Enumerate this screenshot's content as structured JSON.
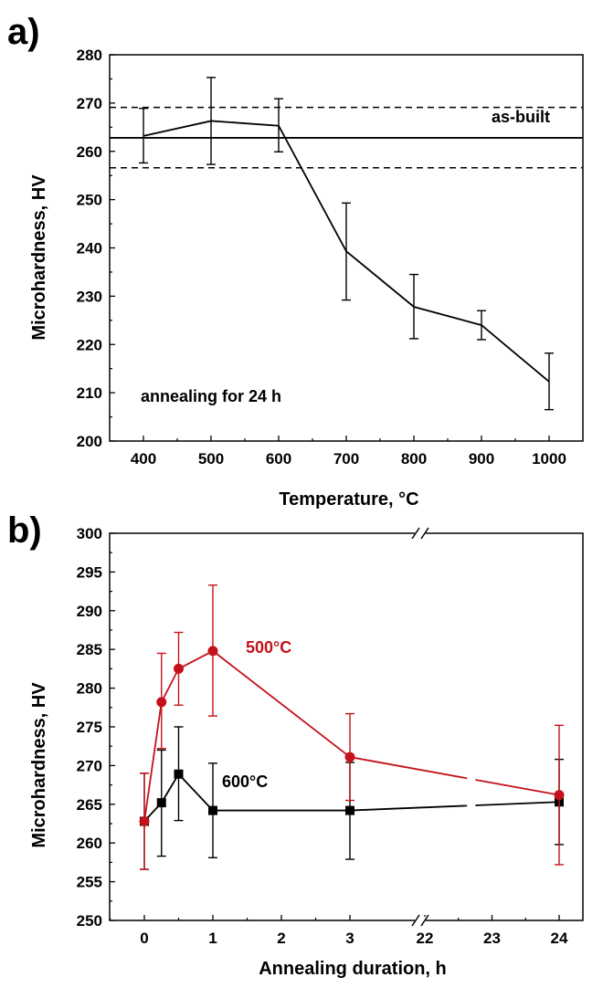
{
  "chart_data": [
    {
      "panel_label": "a)",
      "type": "line",
      "xlabel": "Temperature, °C",
      "ylabel": "Microhardness, HV",
      "xlim": [
        350,
        1050
      ],
      "ylim": [
        200,
        280
      ],
      "x_ticks": [
        400,
        500,
        600,
        700,
        800,
        900,
        1000
      ],
      "y_ticks": [
        200,
        210,
        220,
        230,
        240,
        250,
        260,
        270,
        280
      ],
      "series": [
        {
          "color": "#000000",
          "x": [
            400,
            500,
            600,
            700,
            800,
            900,
            1000
          ],
          "y": [
            263.2,
            266.3,
            265.3,
            239.3,
            227.8,
            224.0,
            212.3
          ],
          "err_low": [
            5.6,
            9.0,
            5.4,
            10.1,
            6.6,
            3.0,
            5.8
          ],
          "err_high": [
            5.7,
            9.0,
            5.6,
            10.0,
            6.7,
            3.0,
            5.9
          ]
        }
      ],
      "reference": {
        "label": "as-built",
        "value": 262.8,
        "lower": 256.6,
        "upper": 269.1
      },
      "annotation": "annealing for 24 h",
      "grid": false
    },
    {
      "panel_label": "b)",
      "type": "line",
      "xlabel": "Annealing duration, h",
      "ylabel": "Microhardness, HV",
      "x_tick_labels": [
        "0",
        "1",
        "2",
        "3",
        "22",
        "23",
        "24"
      ],
      "axis_break": "between 3 and 22",
      "ylim": [
        250,
        300
      ],
      "y_ticks": [
        250,
        255,
        260,
        265,
        270,
        275,
        280,
        285,
        290,
        295,
        300
      ],
      "series": [
        {
          "name": "500°C",
          "color": "#c4121a",
          "marker": "circle",
          "x": [
            0,
            0.25,
            0.5,
            1,
            3,
            24
          ],
          "y": [
            262.8,
            278.2,
            282.5,
            284.8,
            271.1,
            266.2
          ],
          "err_low": [
            6.2,
            6.0,
            4.7,
            8.4,
            5.6,
            9.0
          ],
          "err_high": [
            6.2,
            6.3,
            4.7,
            8.5,
            5.6,
            9.0
          ]
        },
        {
          "name": "600°C",
          "color": "#000000",
          "marker": "square",
          "x": [
            0,
            0.25,
            0.5,
            1,
            3,
            24
          ],
          "y": [
            262.8,
            265.2,
            268.9,
            264.2,
            264.2,
            265.3
          ],
          "err_low": [
            6.2,
            6.9,
            6.0,
            6.1,
            6.3,
            5.5
          ],
          "err_high": [
            6.2,
            6.8,
            6.1,
            6.1,
            6.2,
            5.5
          ]
        }
      ],
      "grid": false
    }
  ]
}
